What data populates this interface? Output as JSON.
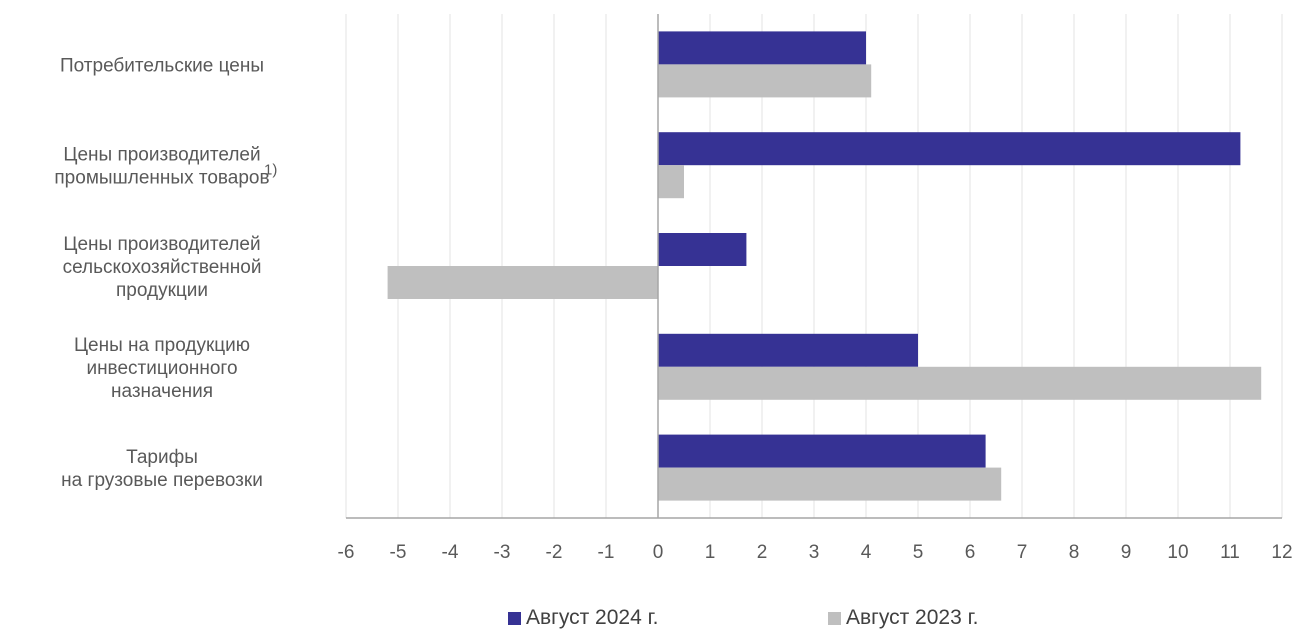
{
  "chart_data": {
    "type": "bar",
    "orientation": "horizontal",
    "categories": [
      [
        "Потребительские цены"
      ],
      [
        "Цены производителей",
        "промышленных товаров"
      ],
      [
        "Цены производителей",
        "сельскохозяйственной",
        "продукции"
      ],
      [
        "Цены на продукцию",
        "инвестиционного",
        "назначения"
      ],
      [
        "Тарифы",
        "на грузовые перевозки"
      ]
    ],
    "category_footnotes": [
      "",
      "1)",
      "",
      "",
      ""
    ],
    "series": [
      {
        "name": "Август 2024 г.",
        "color": "#363294",
        "values": [
          4.0,
          11.2,
          1.7,
          5.0,
          6.3
        ]
      },
      {
        "name": "Август 2023 г.",
        "color": "#BFBFBF",
        "values": [
          4.1,
          0.5,
          -5.2,
          11.6,
          6.6
        ]
      }
    ],
    "xlim": [
      -6,
      12
    ],
    "xticks": [
      -6,
      -5,
      -4,
      -3,
      -2,
      -1,
      0,
      1,
      2,
      3,
      4,
      5,
      6,
      7,
      8,
      9,
      10,
      11,
      12
    ],
    "grid": true,
    "legend_position": "bottom"
  }
}
